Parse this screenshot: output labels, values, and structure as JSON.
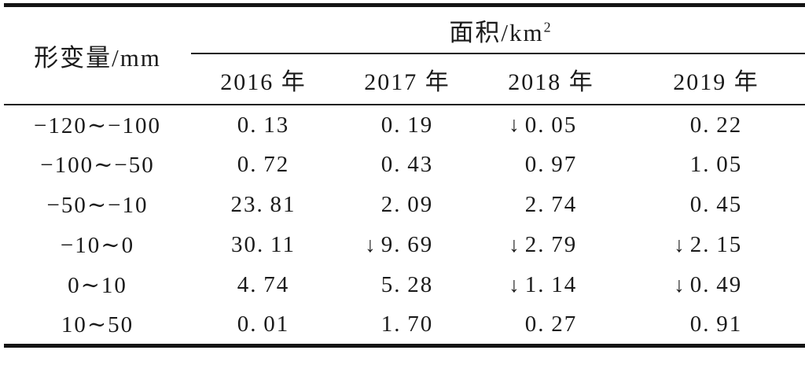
{
  "table": {
    "row_dimension_header": "形变量/mm",
    "spanner": {
      "area_label": "面积/km",
      "area_sup": "2"
    },
    "year_headers": [
      "2016 年",
      "2017 年",
      "2018 年",
      "2019 年"
    ],
    "rows": [
      {
        "label": "−120∼−100",
        "cells": [
          {
            "v": "0.13",
            "down": false
          },
          {
            "v": "0.19",
            "down": false
          },
          {
            "v": "0.05",
            "down": true
          },
          {
            "v": "0.22",
            "down": false
          }
        ]
      },
      {
        "label": "−100∼−50",
        "cells": [
          {
            "v": "0.72",
            "down": false
          },
          {
            "v": "0.43",
            "down": false
          },
          {
            "v": "0.97",
            "down": false
          },
          {
            "v": "1.05",
            "down": false
          }
        ]
      },
      {
        "label": "−50∼−10",
        "cells": [
          {
            "v": "23.81",
            "down": false
          },
          {
            "v": "2.09",
            "down": false
          },
          {
            "v": "2.74",
            "down": false
          },
          {
            "v": "0.45",
            "down": false
          }
        ]
      },
      {
        "label": "−10∼0",
        "cells": [
          {
            "v": "30.11",
            "down": false
          },
          {
            "v": "9.69",
            "down": true
          },
          {
            "v": "2.79",
            "down": true
          },
          {
            "v": "2.15",
            "down": true
          }
        ]
      },
      {
        "label": "0∼10",
        "cells": [
          {
            "v": "4.74",
            "down": false
          },
          {
            "v": "5.28",
            "down": false
          },
          {
            "v": "1.14",
            "down": true
          },
          {
            "v": "0.49",
            "down": true
          }
        ]
      },
      {
        "label": "10∼50",
        "cells": [
          {
            "v": "0.01",
            "down": false
          },
          {
            "v": "1.70",
            "down": false
          },
          {
            "v": "0.27",
            "down": false
          },
          {
            "v": "0.91",
            "down": false
          }
        ]
      }
    ]
  },
  "icons": {
    "down_arrow": "↓"
  },
  "colors": {
    "text": "#1a1a1a",
    "rule": "#141414",
    "background": "#ffffff"
  }
}
